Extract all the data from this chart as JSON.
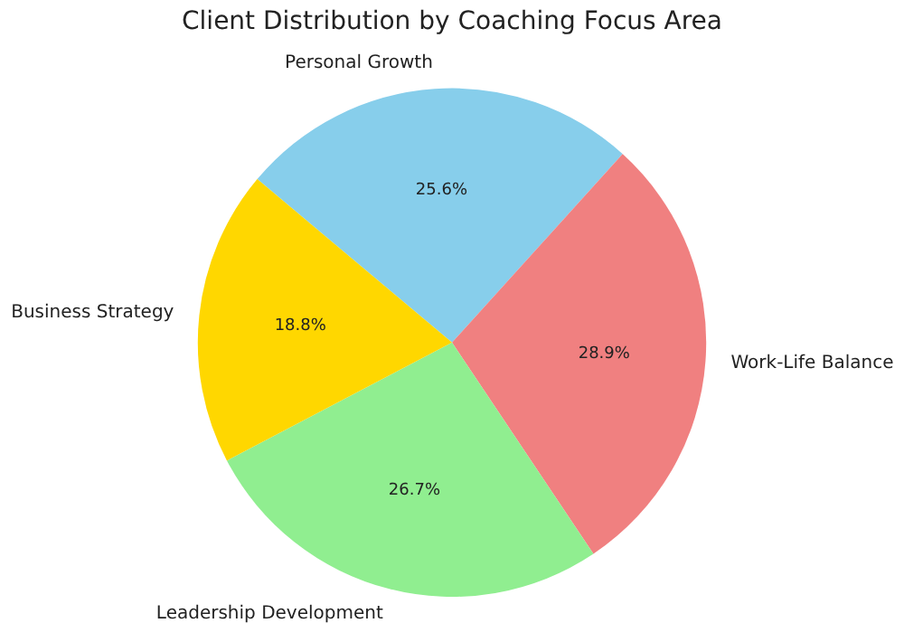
{
  "chart_data": {
    "type": "pie",
    "title": "Client Distribution by Coaching Focus Area",
    "categories": [
      "Personal Growth",
      "Work-Life Balance",
      "Leadership Development",
      "Business Strategy"
    ],
    "values": [
      25.6,
      28.9,
      26.7,
      18.8
    ],
    "colors": [
      "#87ceeb",
      "#f08080",
      "#90ee90",
      "#ffd700"
    ],
    "value_labels": [
      "25.6%",
      "28.9%",
      "26.7%",
      "18.8%"
    ],
    "legend": false
  }
}
